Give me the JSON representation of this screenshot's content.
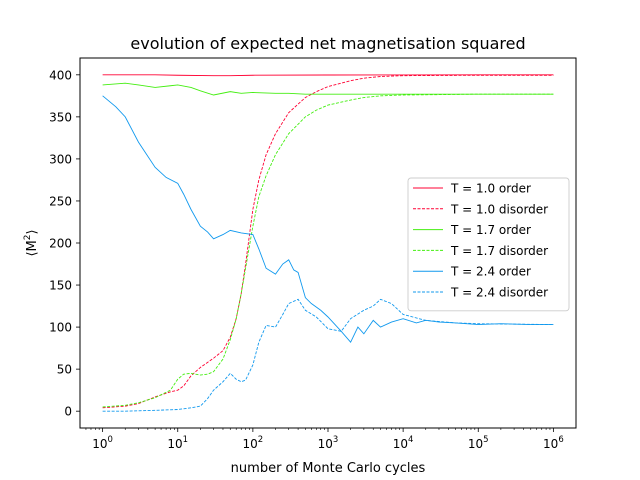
{
  "chart_data": {
    "type": "line",
    "title": "evolution of expected net magnetisation squared",
    "xlabel": "number of Monte Carlo cycles",
    "ylabel_parts": [
      "⟨M",
      "2",
      "⟩"
    ],
    "x_scale": "log",
    "xlim": [
      0.5,
      2000000
    ],
    "ylim": [
      -20,
      420
    ],
    "x_ticks": [
      {
        "value": 1,
        "base": "10",
        "exp": "0"
      },
      {
        "value": 10,
        "base": "10",
        "exp": "1"
      },
      {
        "value": 100,
        "base": "10",
        "exp": "2"
      },
      {
        "value": 1000,
        "base": "10",
        "exp": "3"
      },
      {
        "value": 10000,
        "base": "10",
        "exp": "4"
      },
      {
        "value": 100000,
        "base": "10",
        "exp": "5"
      },
      {
        "value": 1000000,
        "base": "10",
        "exp": "6"
      }
    ],
    "y_ticks": [
      {
        "value": 0,
        "label": "0"
      },
      {
        "value": 50,
        "label": "50"
      },
      {
        "value": 100,
        "label": "100"
      },
      {
        "value": 150,
        "label": "150"
      },
      {
        "value": 200,
        "label": "200"
      },
      {
        "value": 250,
        "label": "250"
      },
      {
        "value": 300,
        "label": "300"
      },
      {
        "value": 350,
        "label": "350"
      },
      {
        "value": 400,
        "label": "400"
      }
    ],
    "grid": false,
    "legend_position": "center-right",
    "series": [
      {
        "name": "T = 1.0 order",
        "color": "#ff0033",
        "dash": "solid",
        "x": [
          1,
          2,
          5,
          10,
          30,
          50,
          100,
          1000,
          10000,
          100000,
          1000000
        ],
        "y": [
          400,
          400,
          400,
          399.5,
          399,
          399,
          399.5,
          399.8,
          399.9,
          400,
          400
        ]
      },
      {
        "name": "T = 1.0 disorder",
        "color": "#ff0033",
        "dash": "dashed",
        "x": [
          1,
          2,
          3,
          5,
          8,
          10,
          12,
          15,
          20,
          30,
          40,
          50,
          60,
          70,
          80,
          100,
          120,
          150,
          200,
          300,
          500,
          700,
          1000,
          2000,
          3000,
          5000,
          10000,
          100000,
          1000000
        ],
        "y": [
          4,
          6,
          9,
          17,
          23,
          25,
          30,
          42,
          52,
          63,
          72,
          88,
          110,
          140,
          175,
          240,
          275,
          305,
          330,
          355,
          373,
          380,
          386,
          393,
          396,
          398,
          399,
          399.5,
          399.5
        ]
      },
      {
        "name": "T = 1.7 order",
        "color": "#44ee11",
        "dash": "solid",
        "x": [
          1,
          2,
          3,
          5,
          8,
          10,
          15,
          20,
          30,
          50,
          70,
          100,
          200,
          300,
          500,
          1000,
          3000,
          10000,
          100000,
          1000000
        ],
        "y": [
          388,
          390,
          388,
          385,
          387,
          388,
          385,
          381,
          376,
          380,
          378,
          379,
          378,
          378,
          377,
          377,
          377,
          377,
          377,
          377
        ]
      },
      {
        "name": "T = 1.7 disorder",
        "color": "#44ee11",
        "dash": "dashed",
        "x": [
          1,
          2,
          3,
          5,
          8,
          10,
          12,
          15,
          20,
          25,
          30,
          40,
          50,
          60,
          70,
          80,
          100,
          120,
          150,
          200,
          300,
          500,
          700,
          1000,
          2000,
          3000,
          5000,
          10000,
          100000,
          1000000
        ],
        "y": [
          5,
          7,
          10,
          16,
          25,
          38,
          44,
          45,
          43,
          44,
          47,
          62,
          85,
          110,
          140,
          170,
          220,
          255,
          280,
          305,
          330,
          350,
          358,
          364,
          370,
          373,
          375,
          376,
          377,
          377
        ]
      },
      {
        "name": "T = 2.4 order",
        "color": "#1199ee",
        "dash": "solid",
        "x": [
          1,
          1.5,
          2,
          3,
          5,
          7,
          10,
          12,
          15,
          20,
          25,
          30,
          40,
          50,
          70,
          100,
          120,
          150,
          200,
          250,
          300,
          350,
          400,
          500,
          600,
          800,
          1000,
          1500,
          2000,
          2500,
          3000,
          4000,
          5000,
          7000,
          10000,
          15000,
          20000,
          30000,
          50000,
          100000,
          200000,
          500000,
          1000000
        ],
        "y": [
          375,
          362,
          350,
          320,
          290,
          278,
          271,
          258,
          240,
          220,
          213,
          205,
          210,
          215,
          212,
          210,
          193,
          170,
          163,
          175,
          180,
          168,
          165,
          135,
          128,
          120,
          112,
          95,
          82,
          100,
          92,
          108,
          100,
          106,
          110,
          105,
          108,
          106,
          105,
          103,
          104,
          103,
          103
        ]
      },
      {
        "name": "T = 2.4 disorder",
        "color": "#1199ee",
        "dash": "dashed",
        "x": [
          1,
          2,
          5,
          10,
          15,
          20,
          25,
          30,
          40,
          50,
          60,
          70,
          80,
          100,
          120,
          150,
          200,
          250,
          300,
          400,
          500,
          700,
          1000,
          1500,
          2000,
          3000,
          4000,
          5000,
          7000,
          10000,
          20000,
          50000,
          100000,
          1000000
        ],
        "y": [
          0,
          0,
          1,
          2,
          4,
          6,
          15,
          25,
          35,
          45,
          38,
          35,
          37,
          55,
          82,
          102,
          100,
          115,
          128,
          133,
          120,
          112,
          98,
          95,
          110,
          120,
          125,
          133,
          128,
          115,
          108,
          105,
          104,
          103
        ]
      }
    ]
  }
}
